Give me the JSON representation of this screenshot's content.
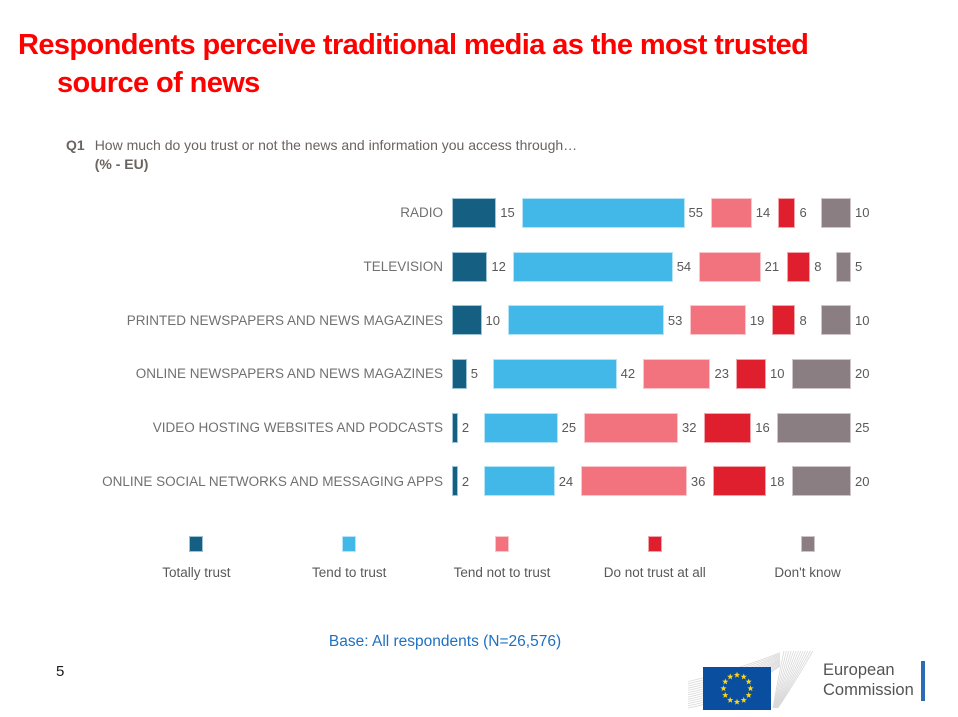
{
  "slide": {
    "title_line1": "Respondents perceive traditional media as the most trusted",
    "title_line2": "source of news",
    "page_number": "5",
    "base_note": "Base: All respondents (N=26,576)"
  },
  "question": {
    "label": "Q1",
    "text": "How much do you trust or not the news and information you access through…",
    "subtext": "(% - EU)"
  },
  "chart_data": {
    "type": "bar",
    "orientation": "horizontal",
    "stacked": true,
    "value_unit": "%",
    "xlim": [
      0,
      100
    ],
    "grid": false,
    "legend_position": "bottom",
    "categories": [
      "RADIO",
      "TELEVISION",
      "PRINTED NEWSPAPERS AND NEWS MAGAZINES",
      "ONLINE NEWSPAPERS AND NEWS MAGAZINES",
      "VIDEO HOSTING WEBSITES AND PODCASTS",
      "ONLINE SOCIAL NETWORKS AND MESSAGING APPS"
    ],
    "series": [
      {
        "name": "Totally trust",
        "color": "#156082",
        "border": "#9dc3d6",
        "values": [
          15,
          12,
          10,
          5,
          2,
          2
        ]
      },
      {
        "name": "Tend to trust",
        "color": "#41b8e8",
        "border": "#b5e3f7",
        "values": [
          55,
          54,
          53,
          42,
          25,
          24
        ]
      },
      {
        "name": "Tend not to trust",
        "color": "#f2727d",
        "border": "#f9c6cb",
        "values": [
          14,
          21,
          19,
          23,
          32,
          36
        ]
      },
      {
        "name": "Do not trust at all",
        "color": "#df1e2e",
        "border": "#f3a3aa",
        "values": [
          6,
          8,
          8,
          10,
          16,
          18
        ]
      },
      {
        "name": "Don't know",
        "color": "#8b7e82",
        "border": "#cdc5c7",
        "values": [
          10,
          5,
          10,
          20,
          25,
          20
        ]
      }
    ]
  },
  "footer": {
    "logo_line1": "European",
    "logo_line2": "Commission"
  }
}
